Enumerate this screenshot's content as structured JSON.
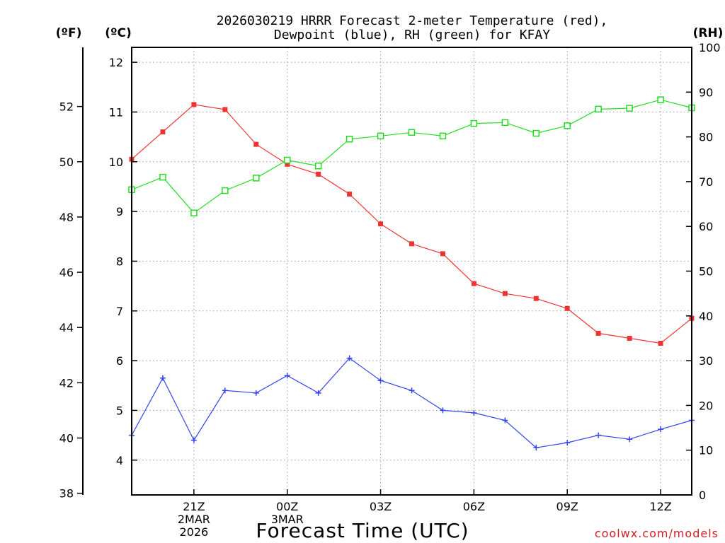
{
  "chart_data": {
    "type": "line",
    "title_line1": "2026030219 HRRR Forecast 2-meter Temperature (red),",
    "title_line2": "Dewpoint (blue), RH (green) for KFAY",
    "xlabel": "Forecast Time (UTC)",
    "watermark": "coolwx.com/models",
    "unit_labels": {
      "fahrenheit": "(ºF)",
      "celsius": "(ºC)",
      "rh": "(RH)"
    },
    "x_range": [
      -2,
      16
    ],
    "celsius_range": [
      3.3,
      12.3
    ],
    "rh_range": [
      0,
      100
    ],
    "x_ticks": [
      {
        "x": 0,
        "lines": [
          "21Z",
          "2MAR",
          "2026"
        ]
      },
      {
        "x": 3,
        "lines": [
          "00Z",
          "3MAR"
        ]
      },
      {
        "x": 6,
        "lines": [
          "03Z"
        ]
      },
      {
        "x": 9,
        "lines": [
          "06Z"
        ]
      },
      {
        "x": 12,
        "lines": [
          "09Z"
        ]
      },
      {
        "x": 15,
        "lines": [
          "12Z"
        ]
      }
    ],
    "celsius_ticks": [
      4,
      5,
      6,
      7,
      8,
      9,
      10,
      11,
      12
    ],
    "fahrenheit_ticks": [
      38,
      40,
      42,
      44,
      46,
      48,
      50,
      52
    ],
    "rh_ticks": [
      0,
      10,
      20,
      30,
      40,
      50,
      60,
      70,
      80,
      90,
      100
    ],
    "hours": [
      -2,
      -1,
      0,
      1,
      2,
      3,
      4,
      5,
      6,
      7,
      8,
      9,
      10,
      11,
      12,
      13,
      14,
      15,
      16
    ],
    "series": [
      {
        "name": "2-meter Temperature",
        "unit": "C",
        "axis": "celsius",
        "color": "#ee3333",
        "marker": "filled-square",
        "values": [
          10.05,
          10.6,
          11.15,
          11.05,
          10.35,
          9.95,
          9.75,
          9.35,
          8.75,
          8.35,
          8.15,
          7.55,
          7.35,
          7.25,
          7.05,
          6.55,
          6.45,
          6.35,
          6.85
        ]
      },
      {
        "name": "Dewpoint",
        "unit": "C",
        "axis": "celsius",
        "color": "#3344ee",
        "marker": "plus",
        "values": [
          4.5,
          5.65,
          4.4,
          5.4,
          5.35,
          5.7,
          5.35,
          6.05,
          5.6,
          5.4,
          5.0,
          4.95,
          4.8,
          4.25,
          4.35,
          4.5,
          4.42,
          4.62,
          4.8
        ]
      },
      {
        "name": "RH",
        "unit": "%",
        "axis": "rh",
        "color": "#22dd22",
        "marker": "open-square",
        "values": [
          68.2,
          71.0,
          63.0,
          68.0,
          70.8,
          74.8,
          73.5,
          79.5,
          80.2,
          81.0,
          80.2,
          83.0,
          83.2,
          80.8,
          82.5,
          86.2,
          86.4,
          88.3,
          86.5
        ]
      }
    ]
  }
}
